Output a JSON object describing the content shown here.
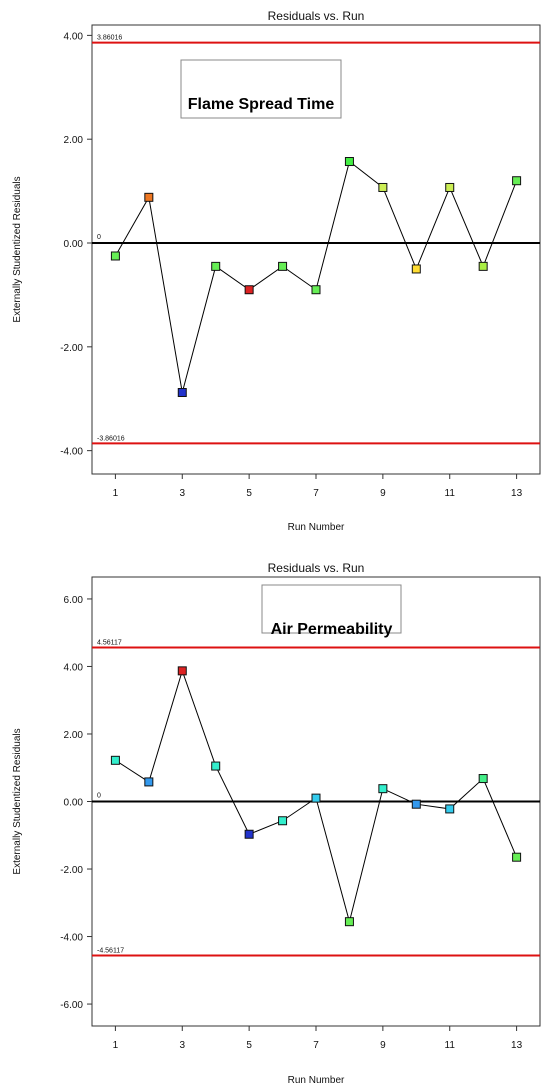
{
  "chart_data": [
    {
      "type": "line",
      "title": "Residuals vs. Run",
      "annotation": "Flame Spread Time",
      "xlabel": "Run Number",
      "ylabel": "Externally Studentized Residuals",
      "xlim": [
        0.3,
        13.7
      ],
      "ylim": [
        -4.45,
        4.2
      ],
      "x_ticks": [
        "1",
        "3",
        "5",
        "7",
        "9",
        "11",
        "13"
      ],
      "y_ticks": [
        "4.00",
        "2.00",
        "0.00",
        "-2.00",
        "-4.00"
      ],
      "limits": {
        "upper": 3.86016,
        "upper_label": "3.86016",
        "lower": -3.86016,
        "lower_label": "-3.86016",
        "zero_label": "0"
      },
      "points": [
        {
          "x": 1,
          "y": -0.25,
          "color": "#66ee55"
        },
        {
          "x": 2,
          "y": 0.88,
          "color": "#ee7722"
        },
        {
          "x": 3,
          "y": -2.88,
          "color": "#2233cc"
        },
        {
          "x": 4,
          "y": -0.45,
          "color": "#66ee55"
        },
        {
          "x": 5,
          "y": -0.9,
          "color": "#dd2222"
        },
        {
          "x": 6,
          "y": -0.45,
          "color": "#66ee55"
        },
        {
          "x": 7,
          "y": -0.9,
          "color": "#66ee55"
        },
        {
          "x": 8,
          "y": 1.57,
          "color": "#44ee44"
        },
        {
          "x": 9,
          "y": 1.07,
          "color": "#ccee55"
        },
        {
          "x": 10,
          "y": -0.5,
          "color": "#ffdd33"
        },
        {
          "x": 11,
          "y": 1.07,
          "color": "#ccee55"
        },
        {
          "x": 12,
          "y": -0.45,
          "color": "#aaee44"
        },
        {
          "x": 13,
          "y": 1.2,
          "color": "#66ee55"
        }
      ]
    },
    {
      "type": "line",
      "title": "Residuals vs. Run",
      "annotation": "Air Permeability",
      "xlabel": "Run Number",
      "ylabel": "Externally Studentized Residuals",
      "xlim": [
        0.3,
        13.7
      ],
      "ylim": [
        -6.65,
        6.65
      ],
      "x_ticks": [
        "1",
        "3",
        "5",
        "7",
        "9",
        "11",
        "13"
      ],
      "y_ticks": [
        "6.00",
        "4.00",
        "2.00",
        "0.00",
        "-2.00",
        "-4.00",
        "-6.00"
      ],
      "limits": {
        "upper": 4.56117,
        "upper_label": "4.56117",
        "lower": -4.56117,
        "lower_label": "-4.56117",
        "zero_label": "0"
      },
      "points": [
        {
          "x": 1,
          "y": 1.22,
          "color": "#33eecc"
        },
        {
          "x": 2,
          "y": 0.58,
          "color": "#3399ee"
        },
        {
          "x": 3,
          "y": 3.87,
          "color": "#dd2222"
        },
        {
          "x": 4,
          "y": 1.05,
          "color": "#33eecc"
        },
        {
          "x": 5,
          "y": -0.97,
          "color": "#2233cc"
        },
        {
          "x": 6,
          "y": -0.57,
          "color": "#33eecc"
        },
        {
          "x": 7,
          "y": 0.1,
          "color": "#33ccee"
        },
        {
          "x": 8,
          "y": -3.56,
          "color": "#66ee55"
        },
        {
          "x": 9,
          "y": 0.38,
          "color": "#33eecc"
        },
        {
          "x": 10,
          "y": -0.08,
          "color": "#3399ee"
        },
        {
          "x": 11,
          "y": -0.22,
          "color": "#33ccee"
        },
        {
          "x": 12,
          "y": 0.68,
          "color": "#44ee88"
        },
        {
          "x": 13,
          "y": -1.65,
          "color": "#66ee55"
        }
      ]
    }
  ]
}
